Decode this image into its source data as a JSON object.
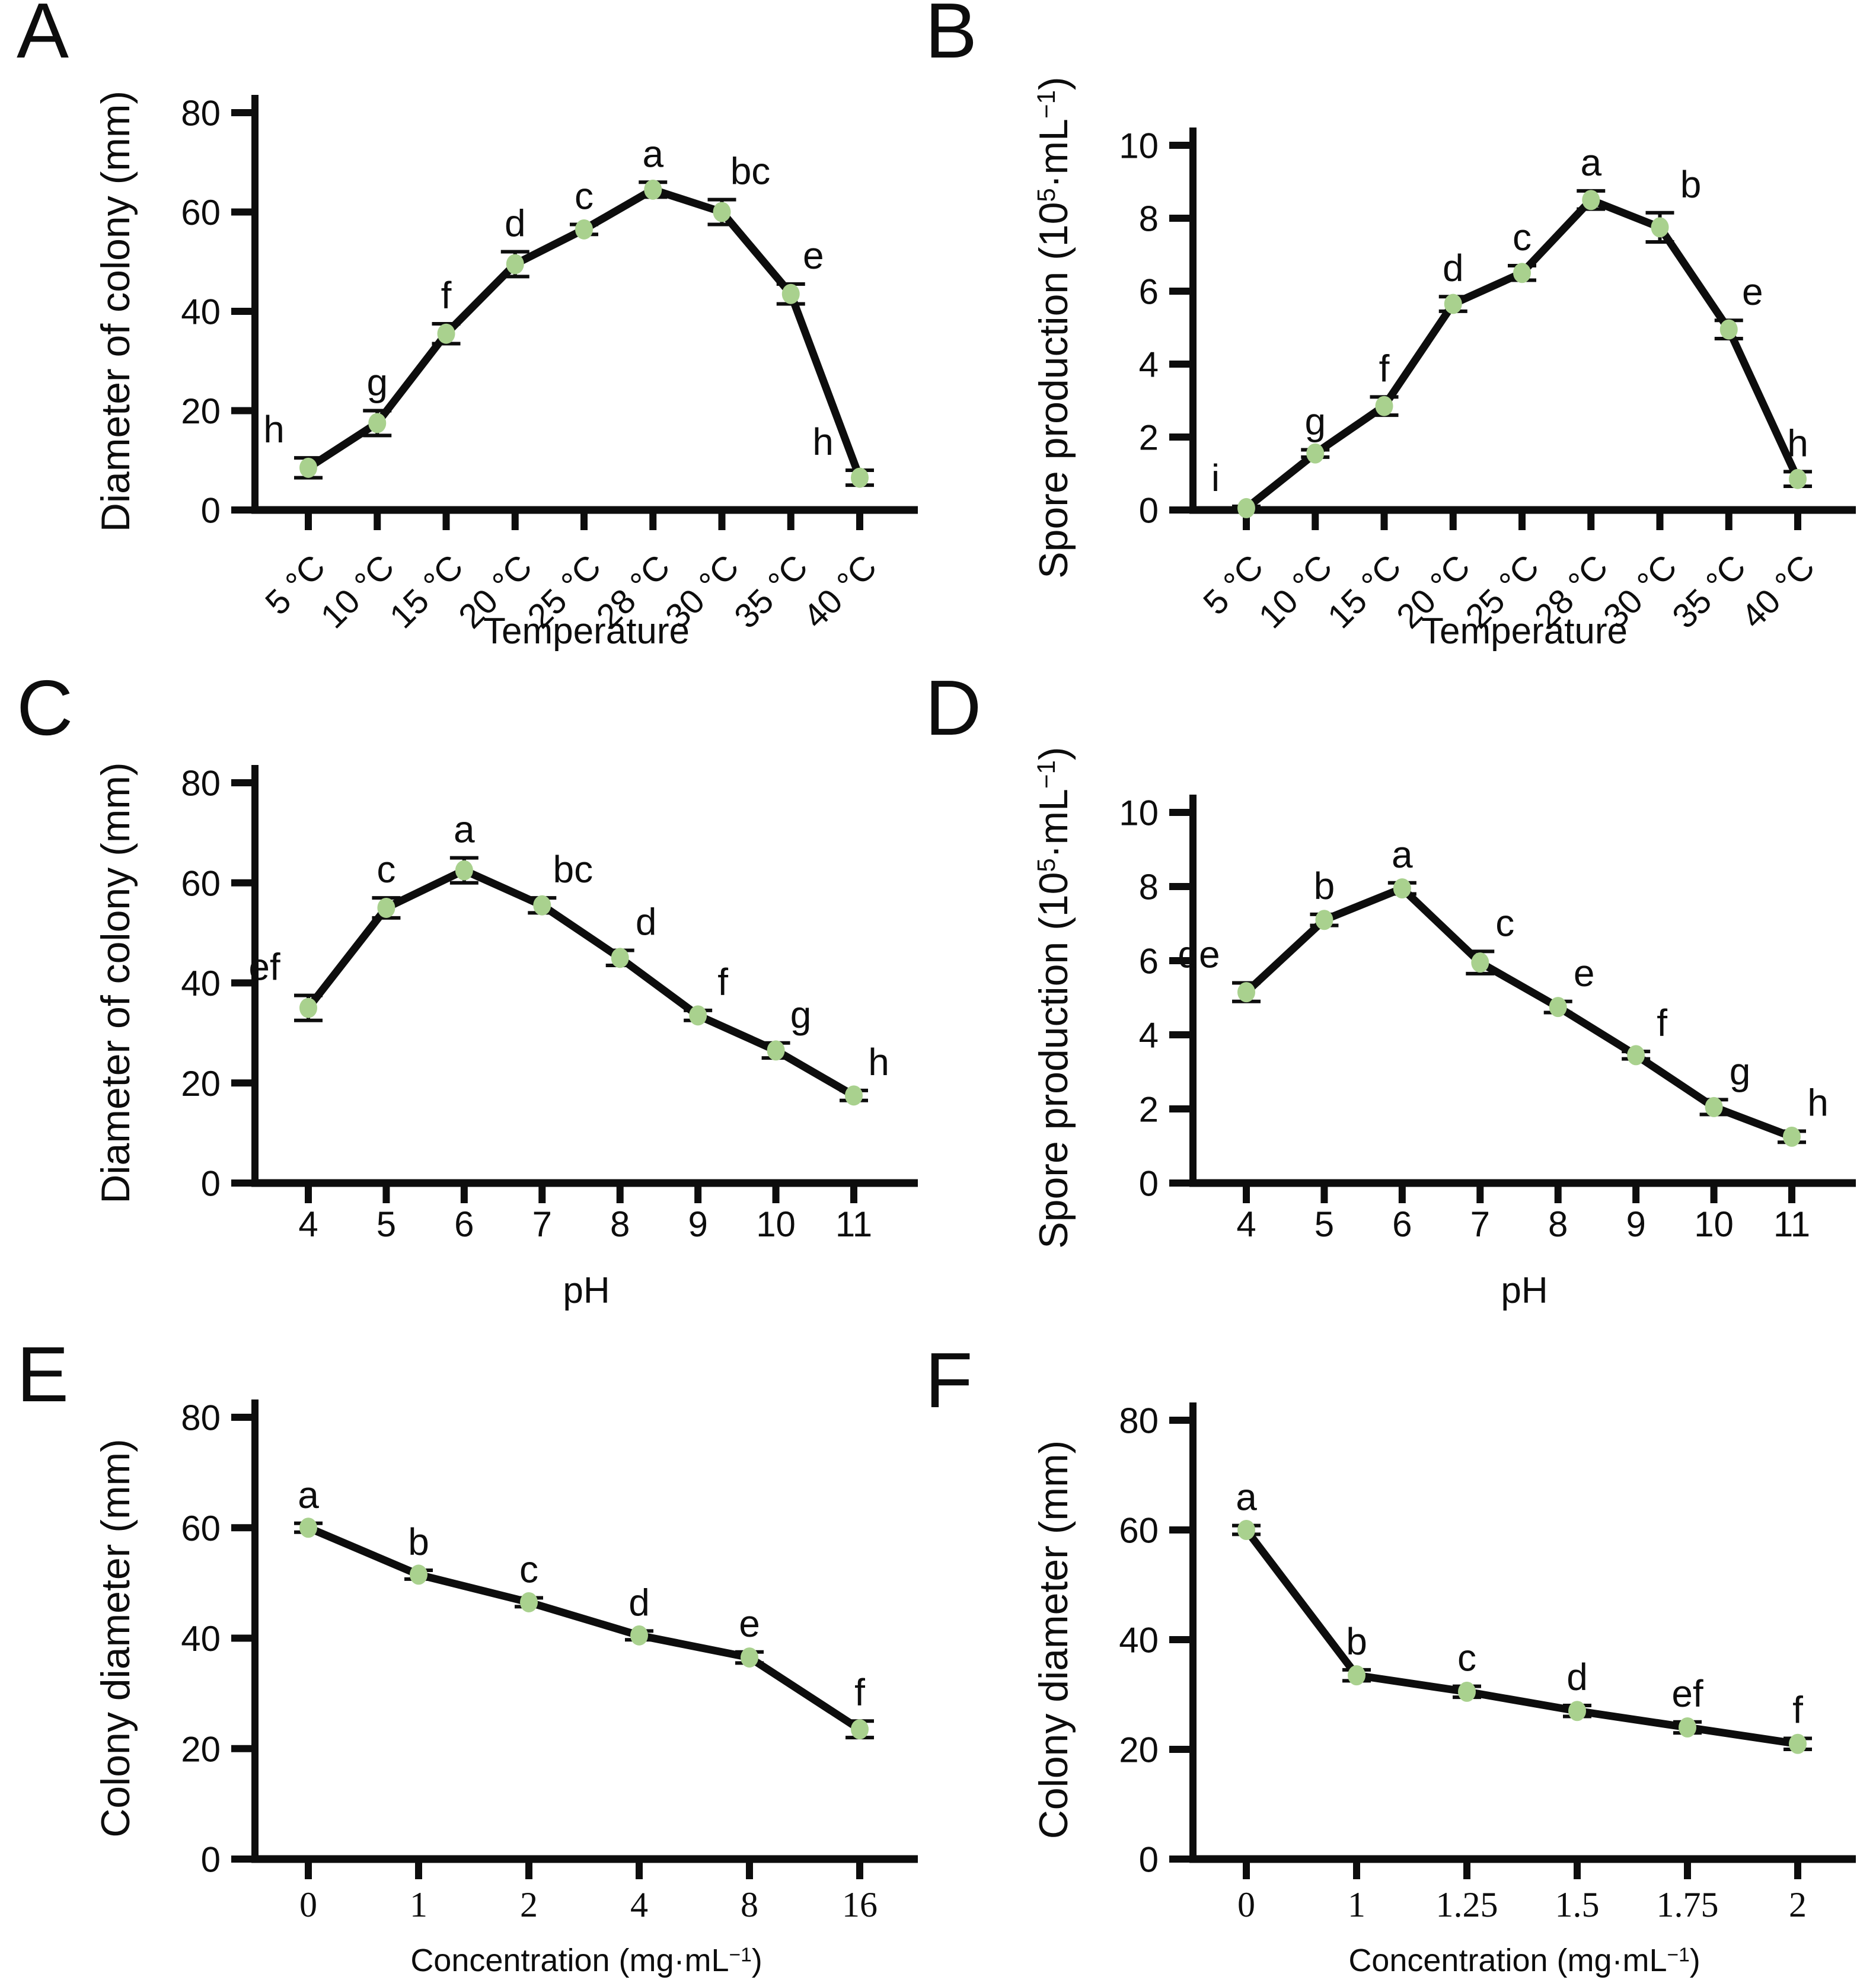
{
  "figure": {
    "background": "#ffffff",
    "point_color": "#a9d18e",
    "line_color": "#0d0d0d",
    "text_color": "#0d0d0d"
  },
  "chart_data": [
    {
      "panel": "A",
      "type": "line",
      "xlabel": "Temperature",
      "ylabel": "Diameter of colony (mm)",
      "categories": [
        "5 °C",
        "10 °C",
        "15 °C",
        "20 °C",
        "25 °C",
        "28 °C",
        "30 °C",
        "35 °C",
        "40 °C"
      ],
      "values": [
        8.5,
        17.5,
        35.5,
        49.5,
        56.5,
        64.5,
        60,
        43.5,
        6.5
      ],
      "errors": [
        2,
        2.5,
        2,
        2.5,
        1,
        1.5,
        2.5,
        2,
        1.5
      ],
      "sig_letters": [
        "h",
        "g",
        "f",
        "d",
        "c",
        "a",
        "bc",
        "e",
        "h"
      ],
      "ylim": [
        0,
        80
      ],
      "yticks": [
        0,
        20,
        40,
        60,
        80
      ],
      "rotated_x_labels": true,
      "grid": false,
      "legend": "none"
    },
    {
      "panel": "B",
      "type": "line",
      "xlabel": "Temperature",
      "ylabel": "Spore production (10⁵·mL⁻¹)",
      "categories": [
        "5 °C",
        "10 °C",
        "15 °C",
        "20 °C",
        "25 °C",
        "28 °C",
        "30 °C",
        "35 °C",
        "40 °C"
      ],
      "values": [
        0.05,
        1.55,
        2.85,
        5.65,
        6.5,
        8.5,
        7.75,
        4.95,
        0.85
      ],
      "errors": [
        0.05,
        0.1,
        0.25,
        0.2,
        0.2,
        0.25,
        0.4,
        0.25,
        0.2
      ],
      "sig_letters": [
        "i",
        "g",
        "f",
        "d",
        "c",
        "a",
        "b",
        "e",
        "h"
      ],
      "ylim": [
        0,
        10
      ],
      "yticks": [
        0,
        2,
        4,
        6,
        8,
        10
      ],
      "rotated_x_labels": true,
      "grid": false,
      "legend": "none"
    },
    {
      "panel": "C",
      "type": "line",
      "xlabel": "pH",
      "ylabel": "Diameter of colony (mm)",
      "categories": [
        "4",
        "5",
        "6",
        "7",
        "8",
        "9",
        "10",
        "11"
      ],
      "values": [
        35,
        55,
        62.5,
        55.5,
        45,
        33.5,
        26.5,
        17.5
      ],
      "errors": [
        2.5,
        2,
        2.5,
        1.5,
        1.5,
        1,
        1.5,
        1
      ],
      "sig_letters": [
        "ef",
        "c",
        "a",
        "bc",
        "d",
        "f",
        "g",
        "h"
      ],
      "ylim": [
        0,
        80
      ],
      "yticks": [
        0,
        20,
        40,
        60,
        80
      ],
      "rotated_x_labels": false,
      "grid": false,
      "legend": "none"
    },
    {
      "panel": "D",
      "type": "line",
      "xlabel": "pH",
      "ylabel": "Spore production (10⁵·mL⁻¹)",
      "categories": [
        "4",
        "5",
        "6",
        "7",
        "8",
        "9",
        "10",
        "11"
      ],
      "values": [
        5.15,
        7.1,
        7.95,
        5.95,
        4.75,
        3.45,
        2.05,
        1.25
      ],
      "errors": [
        0.25,
        0.15,
        0.15,
        0.3,
        0.15,
        0.1,
        0.2,
        0.15
      ],
      "sig_letters": [
        "de",
        "b",
        "a",
        "c",
        "e",
        "f",
        "g",
        "h"
      ],
      "ylim": [
        0,
        10
      ],
      "yticks": [
        0,
        2,
        4,
        6,
        8,
        10
      ],
      "rotated_x_labels": false,
      "grid": false,
      "legend": "none"
    },
    {
      "panel": "E",
      "type": "line",
      "xlabel": "Concentration (mg·mL⁻¹)",
      "ylabel": "Colony diameter (mm)",
      "categories": [
        "0",
        "1",
        "2",
        "4",
        "8",
        "16"
      ],
      "values": [
        60,
        51.5,
        46.5,
        40.5,
        36.5,
        23.5
      ],
      "errors": [
        0.8,
        0.8,
        0.8,
        0.8,
        1,
        1.5
      ],
      "sig_letters": [
        "a",
        "b",
        "c",
        "d",
        "e",
        "f"
      ],
      "ylim": [
        0,
        80
      ],
      "yticks": [
        0,
        20,
        40,
        60,
        80
      ],
      "rotated_x_labels": false,
      "grid": false,
      "legend": "none"
    },
    {
      "panel": "F",
      "type": "line",
      "xlabel": "Concentration (mg·mL⁻¹)",
      "ylabel": "Colony diameter (mm)",
      "categories": [
        "0",
        "1",
        "1.25",
        "1.5",
        "1.75",
        "2"
      ],
      "values": [
        60,
        33.5,
        30.5,
        27,
        24,
        21
      ],
      "errors": [
        0.8,
        1,
        1,
        1,
        1,
        1
      ],
      "sig_letters": [
        "a",
        "b",
        "c",
        "d",
        "ef",
        "f"
      ],
      "ylim": [
        0,
        80
      ],
      "yticks": [
        0,
        20,
        40,
        60,
        80
      ],
      "rotated_x_labels": false,
      "grid": false,
      "legend": "none"
    }
  ]
}
